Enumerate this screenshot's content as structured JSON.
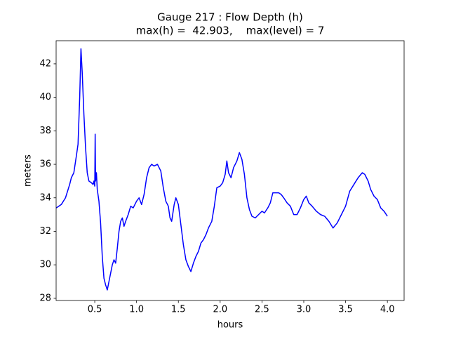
{
  "chart_data": {
    "type": "line",
    "title": "Gauge 217 : Flow Depth (h)",
    "subtitle": "max(h) =  42.903,    max(level) = 7",
    "x_label": "hours",
    "y_label": "meters",
    "xlim": [
      0.038,
      4.2
    ],
    "ylim": [
      27.87,
      43.38
    ],
    "xticks": [
      0.5,
      {
        "value": 1.0,
        "label": "1.0"
      },
      1.5,
      {
        "value": 2.0,
        "label": "2.0"
      },
      2.5,
      {
        "value": 3.0,
        "label": "3.0"
      },
      3.5,
      {
        "value": 4.0,
        "label": "4.0"
      }
    ],
    "yticks": [
      28,
      30,
      32,
      34,
      36,
      38,
      40,
      42
    ],
    "grid": false,
    "series": [
      {
        "color": "#0000ff",
        "x": [
          0.04,
          0.1,
          0.15,
          0.2,
          0.22,
          0.25,
          0.28,
          0.3,
          0.32,
          0.335,
          0.35,
          0.37,
          0.39,
          0.41,
          0.43,
          0.46,
          0.48,
          0.49,
          0.5,
          0.505,
          0.51,
          0.52,
          0.53,
          0.55,
          0.57,
          0.59,
          0.61,
          0.63,
          0.65,
          0.67,
          0.69,
          0.71,
          0.73,
          0.75,
          0.77,
          0.79,
          0.81,
          0.83,
          0.85,
          0.87,
          0.9,
          0.93,
          0.96,
          1.0,
          1.03,
          1.06,
          1.09,
          1.12,
          1.15,
          1.18,
          1.21,
          1.25,
          1.29,
          1.32,
          1.35,
          1.38,
          1.4,
          1.42,
          1.45,
          1.47,
          1.5,
          1.53,
          1.56,
          1.59,
          1.62,
          1.65,
          1.68,
          1.71,
          1.74,
          1.77,
          1.8,
          1.83,
          1.86,
          1.9,
          1.93,
          1.96,
          2.0,
          2.03,
          2.06,
          2.08,
          2.1,
          2.13,
          2.16,
          2.2,
          2.23,
          2.26,
          2.29,
          2.32,
          2.35,
          2.38,
          2.42,
          2.46,
          2.5,
          2.53,
          2.57,
          2.6,
          2.63,
          2.66,
          2.7,
          2.73,
          2.76,
          2.8,
          2.84,
          2.88,
          2.92,
          2.96,
          3.0,
          3.03,
          3.06,
          3.1,
          3.15,
          3.2,
          3.25,
          3.3,
          3.35,
          3.4,
          3.45,
          3.5,
          3.55,
          3.6,
          3.65,
          3.7,
          3.73,
          3.77,
          3.8,
          3.84,
          3.88,
          3.92,
          3.96,
          4.0
        ],
        "values": [
          33.4,
          33.6,
          34.0,
          34.8,
          35.2,
          35.5,
          36.5,
          37.2,
          40,
          42.9,
          41.5,
          39,
          37,
          35.5,
          35.0,
          34.9,
          34.8,
          35.0,
          34.7,
          37.8,
          35.0,
          35.5,
          34.5,
          33.8,
          32.5,
          30.5,
          29.2,
          28.8,
          28.5,
          29.0,
          29.5,
          30.0,
          30.3,
          30.1,
          31.0,
          32.0,
          32.6,
          32.8,
          32.3,
          32.6,
          33.0,
          33.5,
          33.4,
          33.8,
          34.0,
          33.6,
          34.2,
          35.2,
          35.8,
          36.0,
          35.9,
          36.0,
          35.6,
          34.6,
          33.8,
          33.5,
          32.8,
          32.6,
          33.6,
          34.0,
          33.6,
          32.4,
          31.2,
          30.3,
          29.9,
          29.6,
          30.1,
          30.5,
          30.8,
          31.3,
          31.5,
          31.8,
          32.2,
          32.6,
          33.5,
          34.6,
          34.7,
          34.9,
          35.4,
          36.2,
          35.5,
          35.2,
          35.8,
          36.2,
          36.7,
          36.3,
          35.4,
          34.0,
          33.3,
          32.9,
          32.8,
          33.0,
          33.2,
          33.1,
          33.4,
          33.7,
          34.3,
          34.3,
          34.3,
          34.2,
          34.0,
          33.7,
          33.5,
          33.0,
          33.0,
          33.4,
          33.9,
          34.1,
          33.7,
          33.5,
          33.2,
          33.0,
          32.9,
          32.6,
          32.2,
          32.5,
          33.0,
          33.5,
          34.4,
          34.8,
          35.2,
          35.5,
          35.4,
          35.0,
          34.5,
          34.1,
          33.9,
          33.4,
          33.2,
          32.9
        ]
      }
    ]
  }
}
